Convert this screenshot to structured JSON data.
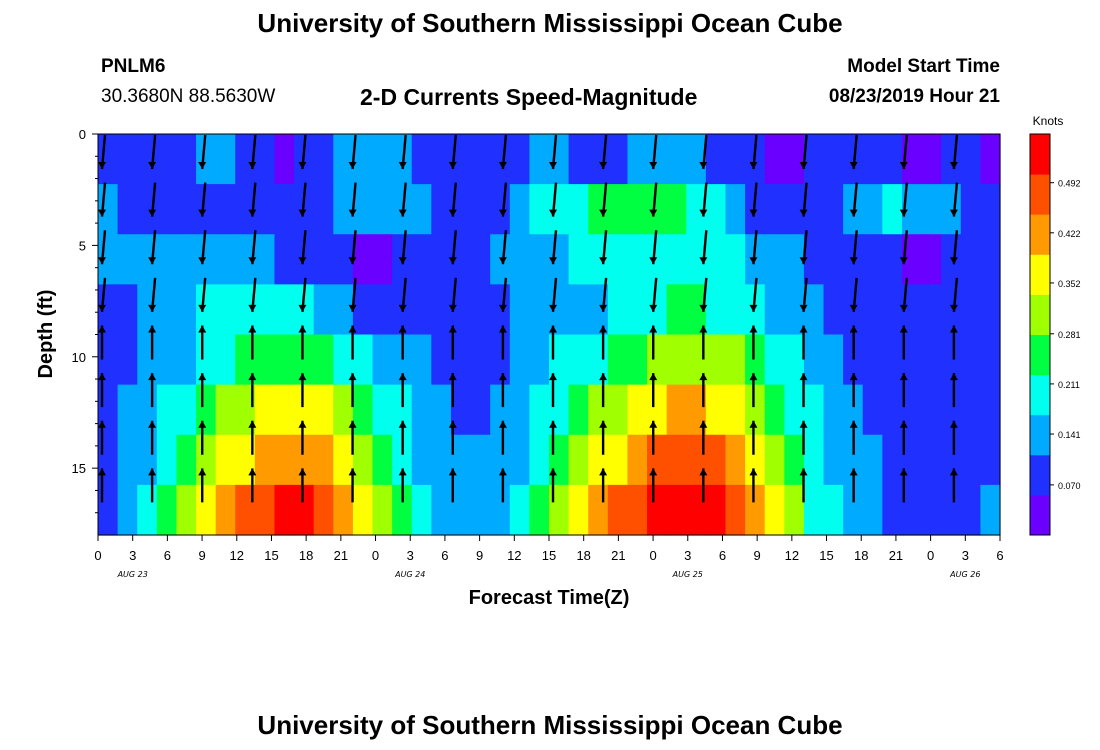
{
  "header": {
    "title": "University of Southern Mississippi Ocean Cube",
    "station": "PNLM6",
    "coords": "30.3680N 88.5630W",
    "subtitle": "2-D Currents Speed-Magnitude",
    "start_label": "Model Start Time",
    "start_value": "08/23/2019 Hour 21"
  },
  "footer": {
    "title": "University of Southern Mississippi Ocean Cube"
  },
  "chart_data": {
    "type": "heatmap",
    "xlabel": "Forecast Time(Z)",
    "ylabel": "Depth (ft)",
    "colorbar_label": "Knots",
    "x_ticks": [
      "0",
      "3",
      "6",
      "9",
      "12",
      "15",
      "18",
      "21",
      "0",
      "3",
      "6",
      "9",
      "12",
      "15",
      "18",
      "21",
      "0",
      "3",
      "6",
      "9",
      "12",
      "15",
      "18",
      "21",
      "0",
      "3",
      "6"
    ],
    "day_labels": [
      {
        "label": "AUG 23",
        "x_hours": 3
      },
      {
        "label": "AUG 24",
        "x_hours": 27
      },
      {
        "label": "AUG 25",
        "x_hours": 51
      },
      {
        "label": "AUG 26",
        "x_hours": 75
      }
    ],
    "y_ticks": [
      0,
      5,
      10,
      15
    ],
    "ylim": [
      0,
      18
    ],
    "xlim_hours": [
      0,
      78
    ],
    "colorbar_ticks": [
      "0.070",
      "0.141",
      "0.211",
      "0.281",
      "0.352",
      "0.422",
      "0.492"
    ],
    "colorbar_range": [
      0,
      0.56
    ],
    "colors": [
      "#6a00ff",
      "#2030ff",
      "#00aaff",
      "#00ffee",
      "#00ff40",
      "#a0ff00",
      "#ffff00",
      "#ff9a00",
      "#ff5000",
      "#ff0000"
    ],
    "speed_knots": [
      [
        0.06,
        0.07,
        0.06,
        0.07,
        0.1,
        0.13,
        0.14,
        0.1,
        0.06,
        0.05,
        0.06,
        0.09,
        0.12,
        0.15,
        0.16,
        0.14,
        0.11,
        0.09,
        0.08,
        0.08,
        0.09,
        0.11,
        0.13,
        0.12,
        0.1,
        0.09,
        0.1,
        0.12,
        0.14,
        0.15,
        0.14,
        0.11,
        0.08,
        0.06,
        0.04,
        0.05,
        0.07,
        0.09,
        0.1,
        0.08,
        0.06,
        0.05,
        0.05,
        0.06,
        0.07,
        0.05
      ],
      [
        0.12,
        0.11,
        0.1,
        0.09,
        0.09,
        0.08,
        0.07,
        0.06,
        0.06,
        0.07,
        0.08,
        0.1,
        0.12,
        0.13,
        0.14,
        0.13,
        0.12,
        0.11,
        0.1,
        0.1,
        0.11,
        0.14,
        0.17,
        0.19,
        0.21,
        0.23,
        0.24,
        0.25,
        0.26,
        0.25,
        0.22,
        0.18,
        0.14,
        0.11,
        0.09,
        0.08,
        0.09,
        0.11,
        0.14,
        0.16,
        0.17,
        0.16,
        0.14,
        0.12,
        0.1,
        0.09
      ],
      [
        0.13,
        0.14,
        0.14,
        0.14,
        0.15,
        0.15,
        0.14,
        0.13,
        0.12,
        0.11,
        0.1,
        0.08,
        0.06,
        0.05,
        0.05,
        0.06,
        0.07,
        0.08,
        0.09,
        0.11,
        0.13,
        0.14,
        0.15,
        0.16,
        0.17,
        0.18,
        0.19,
        0.2,
        0.21,
        0.22,
        0.21,
        0.2,
        0.18,
        0.16,
        0.14,
        0.12,
        0.11,
        0.1,
        0.09,
        0.07,
        0.06,
        0.05,
        0.05,
        0.06,
        0.07,
        0.08
      ],
      [
        0.1,
        0.11,
        0.12,
        0.13,
        0.15,
        0.17,
        0.19,
        0.2,
        0.21,
        0.2,
        0.18,
        0.15,
        0.13,
        0.11,
        0.1,
        0.09,
        0.09,
        0.09,
        0.09,
        0.1,
        0.11,
        0.12,
        0.13,
        0.14,
        0.15,
        0.16,
        0.18,
        0.2,
        0.22,
        0.23,
        0.23,
        0.22,
        0.2,
        0.17,
        0.15,
        0.13,
        0.12,
        0.11,
        0.1,
        0.09,
        0.08,
        0.07,
        0.06,
        0.06,
        0.07,
        0.08
      ],
      [
        0.09,
        0.1,
        0.12,
        0.14,
        0.16,
        0.19,
        0.22,
        0.24,
        0.26,
        0.27,
        0.27,
        0.25,
        0.22,
        0.18,
        0.15,
        0.13,
        0.12,
        0.11,
        0.1,
        0.1,
        0.11,
        0.13,
        0.15,
        0.17,
        0.19,
        0.21,
        0.24,
        0.26,
        0.28,
        0.3,
        0.31,
        0.3,
        0.28,
        0.24,
        0.2,
        0.17,
        0.15,
        0.13,
        0.11,
        0.1,
        0.09,
        0.08,
        0.07,
        0.07,
        0.08,
        0.09
      ],
      [
        0.1,
        0.12,
        0.14,
        0.17,
        0.2,
        0.24,
        0.28,
        0.32,
        0.35,
        0.36,
        0.36,
        0.34,
        0.3,
        0.26,
        0.21,
        0.17,
        0.14,
        0.12,
        0.11,
        0.11,
        0.12,
        0.14,
        0.17,
        0.2,
        0.24,
        0.28,
        0.32,
        0.35,
        0.38,
        0.4,
        0.4,
        0.38,
        0.35,
        0.3,
        0.26,
        0.22,
        0.18,
        0.15,
        0.13,
        0.11,
        0.1,
        0.09,
        0.08,
        0.08,
        0.09,
        0.1
      ],
      [
        0.1,
        0.13,
        0.16,
        0.2,
        0.24,
        0.29,
        0.34,
        0.38,
        0.41,
        0.43,
        0.43,
        0.41,
        0.37,
        0.31,
        0.25,
        0.2,
        0.16,
        0.13,
        0.12,
        0.12,
        0.13,
        0.16,
        0.2,
        0.25,
        0.3,
        0.34,
        0.38,
        0.42,
        0.45,
        0.47,
        0.47,
        0.45,
        0.41,
        0.36,
        0.3,
        0.25,
        0.2,
        0.16,
        0.13,
        0.12,
        0.1,
        0.09,
        0.08,
        0.09,
        0.1,
        0.11
      ],
      [
        0.11,
        0.14,
        0.18,
        0.23,
        0.28,
        0.34,
        0.4,
        0.45,
        0.49,
        0.51,
        0.51,
        0.49,
        0.44,
        0.37,
        0.3,
        0.23,
        0.18,
        0.15,
        0.13,
        0.13,
        0.15,
        0.19,
        0.24,
        0.3,
        0.36,
        0.41,
        0.46,
        0.5,
        0.53,
        0.54,
        0.54,
        0.52,
        0.48,
        0.42,
        0.35,
        0.28,
        0.22,
        0.17,
        0.14,
        0.12,
        0.11,
        0.1,
        0.09,
        0.1,
        0.11,
        0.12
      ]
    ]
  }
}
